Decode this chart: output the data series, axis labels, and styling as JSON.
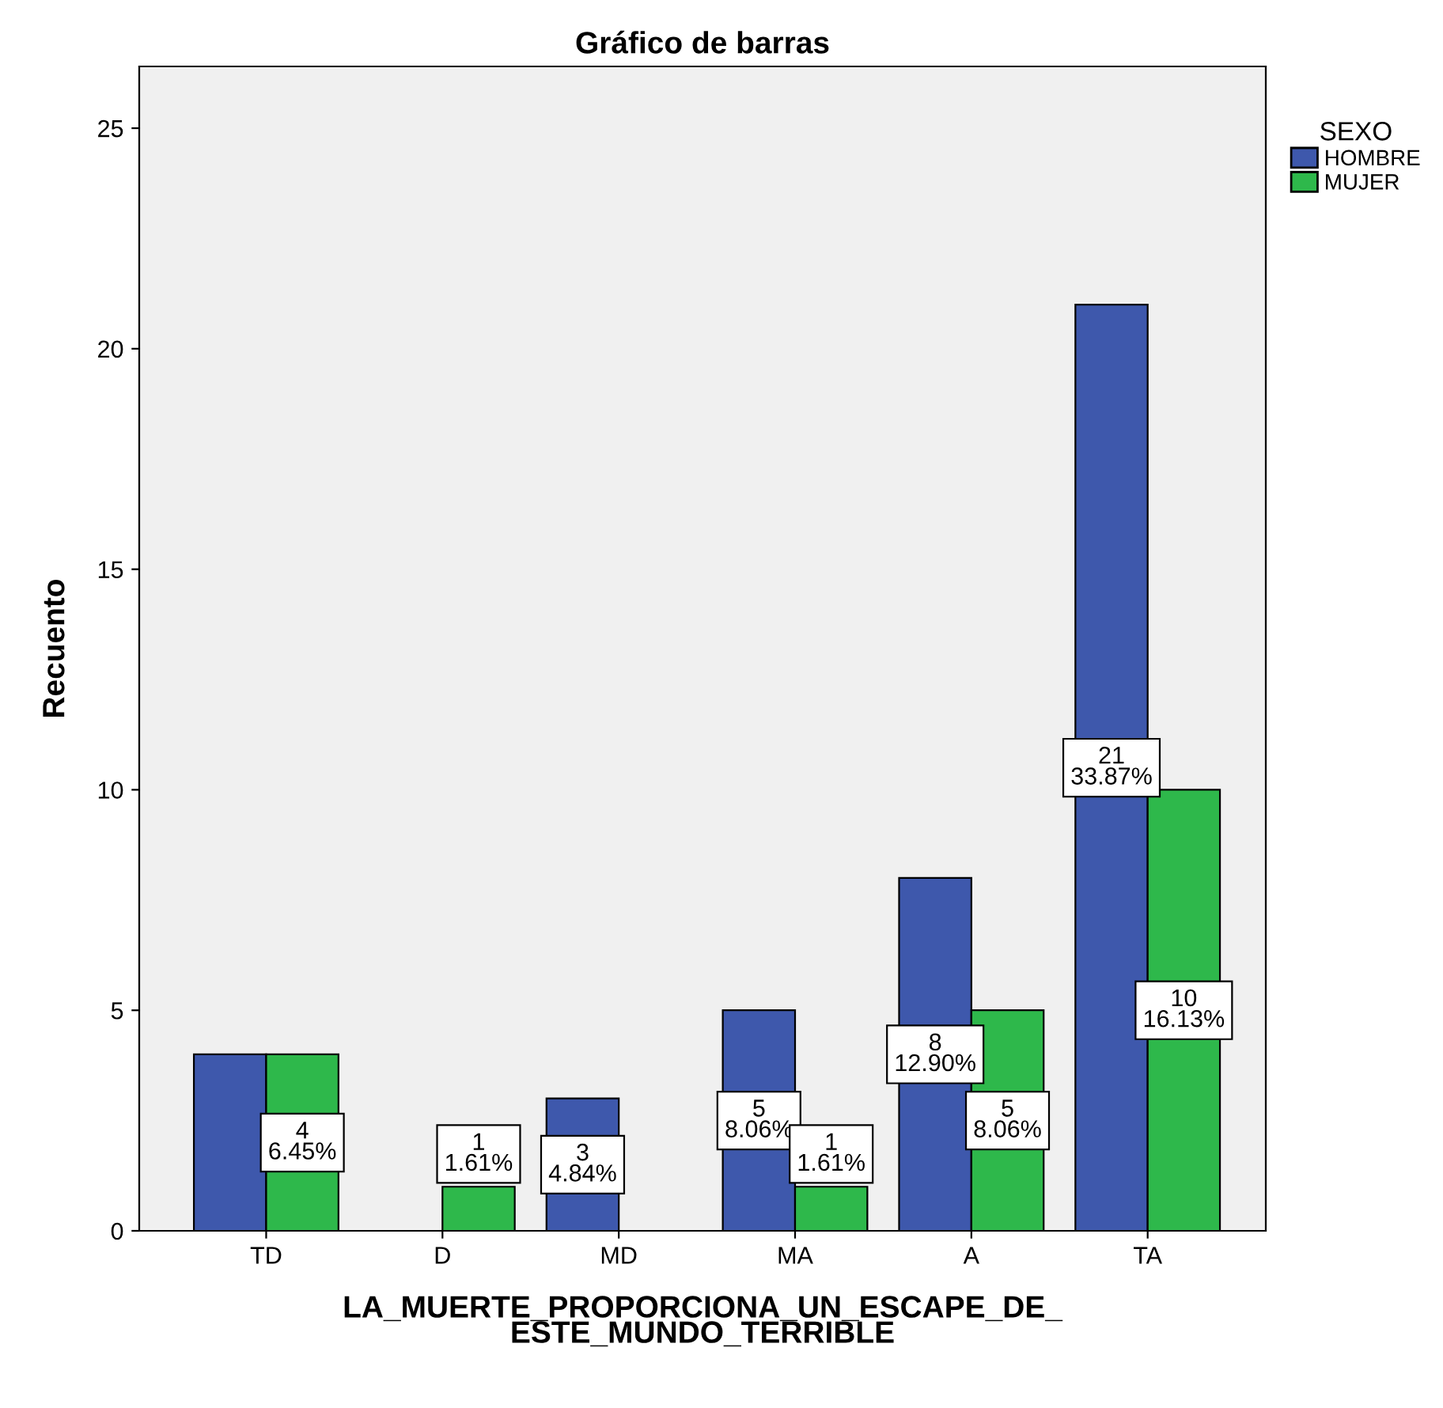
{
  "chart_data": {
    "type": "bar",
    "title": "Gráfico de barras",
    "xlabel": "LA_MUERTE_PROPORCIONA_UN_ESCAPE_DE_\nESTE_MUNDO_TERRIBLE",
    "ylabel": "Recuento",
    "legend_title": "SEXO",
    "categories": [
      "TD",
      "D",
      "MD",
      "MA",
      "A",
      "TA"
    ],
    "series": [
      {
        "name": "HOMBRE",
        "color": "#3e58ac",
        "values": [
          4,
          0,
          3,
          5,
          8,
          21
        ],
        "value_labels": [
          null,
          null,
          "3\n4.84%",
          "5\n8.06%",
          "8\n12.90%",
          "21\n33.87%"
        ]
      },
      {
        "name": "MUJER",
        "color": "#2eb84b",
        "values": [
          4,
          1,
          0,
          1,
          5,
          10
        ],
        "value_labels": [
          "4\n6.45%",
          "1\n1.61%",
          null,
          "1\n1.61%",
          "5\n8.06%",
          "10\n16.13%"
        ]
      }
    ],
    "ylim": [
      0,
      26.4
    ],
    "yticks": [
      0,
      5,
      10,
      15,
      20,
      25
    ],
    "grid": false,
    "legend": "top right"
  }
}
